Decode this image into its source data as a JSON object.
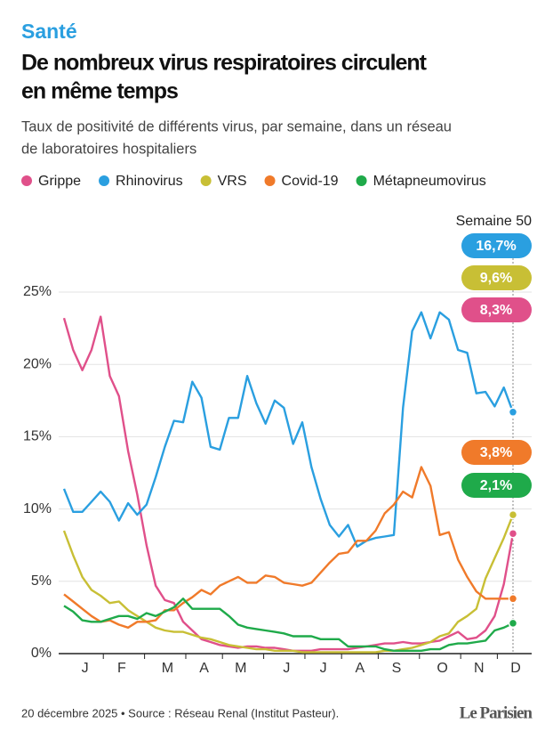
{
  "header": {
    "kicker": "Santé",
    "title_lines": [
      "De nombreux virus respiratoires circulent",
      "en même temps"
    ],
    "subtitle_lines": [
      "Taux de positivité de différents virus, par semaine, dans un réseau",
      "de laboratoires hospitaliers"
    ]
  },
  "chart_data": {
    "type": "line",
    "annotation": "Semaine 50",
    "categories": [
      null,
      null,
      "J",
      null,
      null,
      null,
      "F",
      null,
      null,
      null,
      null,
      "M",
      null,
      null,
      null,
      "A",
      null,
      null,
      null,
      "M",
      null,
      null,
      null,
      null,
      "J",
      null,
      null,
      null,
      "J",
      null,
      null,
      null,
      "A",
      null,
      null,
      null,
      "S",
      null,
      null,
      null,
      null,
      "O",
      null,
      null,
      null,
      "N",
      null,
      null,
      null,
      "D"
    ],
    "ylim": [
      0,
      27
    ],
    "yticks": [
      {
        "value": 0,
        "label": "0%"
      },
      {
        "value": 5,
        "label": "5%"
      },
      {
        "value": 10,
        "label": "10%"
      },
      {
        "value": 15,
        "label": "15%"
      },
      {
        "value": 20,
        "label": "20%"
      },
      {
        "value": 25,
        "label": "25%"
      }
    ],
    "grid": true,
    "series": [
      {
        "name": "Grippe",
        "color": "#e0508a",
        "values": [
          23.2,
          21,
          19.6,
          21,
          23.3,
          19.2,
          17.8,
          14,
          11,
          7.5,
          4.7,
          3.7,
          3.5,
          2.2,
          1.6,
          1.0,
          0.8,
          0.6,
          0.5,
          0.4,
          0.5,
          0.5,
          0.4,
          0.4,
          0.3,
          0.2,
          0.2,
          0.2,
          0.3,
          0.3,
          0.3,
          0.3,
          0.4,
          0.5,
          0.6,
          0.7,
          0.7,
          0.8,
          0.7,
          0.7,
          0.8,
          0.9,
          1.2,
          1.5,
          1.0,
          1.1,
          1.6,
          2.6,
          4.8,
          8.3
        ],
        "value_labels": [
          null,
          null,
          null,
          null,
          null,
          null,
          null,
          null,
          null,
          null,
          null,
          null,
          null,
          null,
          null,
          null,
          null,
          null,
          null,
          null,
          null,
          null,
          null,
          null,
          null,
          null,
          null,
          null,
          null,
          null,
          null,
          null,
          null,
          null,
          null,
          null,
          null,
          null,
          null,
          null,
          null,
          null,
          null,
          null,
          null,
          null,
          null,
          null,
          null,
          "8,3%"
        ]
      },
      {
        "name": "Rhinovirus",
        "color": "#2a9fe0",
        "values": [
          11.4,
          9.8,
          9.8,
          10.5,
          11.2,
          10.5,
          9.2,
          10.4,
          9.6,
          10.3,
          12.2,
          14.3,
          16.1,
          16.0,
          18.8,
          17.7,
          14.3,
          14.1,
          16.3,
          16.3,
          19.2,
          17.3,
          15.9,
          17.5,
          17.0,
          14.5,
          16.0,
          12.9,
          10.7,
          8.9,
          8.1,
          8.9,
          7.4,
          7.8,
          8.0,
          8.1,
          8.2,
          17.0,
          22.3,
          23.6,
          21.8,
          23.6,
          23.1,
          21.0,
          20.8,
          18.0,
          18.1,
          17.1,
          18.4,
          16.7
        ],
        "value_labels": [
          null,
          null,
          null,
          null,
          null,
          null,
          null,
          null,
          null,
          null,
          null,
          null,
          null,
          null,
          null,
          null,
          null,
          null,
          null,
          null,
          null,
          null,
          null,
          null,
          null,
          null,
          null,
          null,
          null,
          null,
          null,
          null,
          null,
          null,
          null,
          null,
          null,
          null,
          null,
          null,
          null,
          null,
          null,
          null,
          null,
          null,
          null,
          null,
          null,
          "16,7%"
        ]
      },
      {
        "name": "VRS",
        "color": "#c8bf35",
        "values": [
          8.5,
          6.8,
          5.3,
          4.4,
          4.0,
          3.5,
          3.6,
          3.0,
          2.6,
          2.2,
          1.8,
          1.6,
          1.5,
          1.5,
          1.3,
          1.1,
          1.0,
          0.8,
          0.6,
          0.5,
          0.4,
          0.3,
          0.3,
          0.2,
          0.2,
          0.2,
          0.1,
          0.1,
          0.1,
          0.1,
          0.1,
          0.1,
          0.1,
          0.1,
          0.1,
          0.2,
          0.2,
          0.3,
          0.4,
          0.6,
          0.8,
          1.2,
          1.4,
          2.2,
          2.6,
          3.1,
          5.2,
          6.6,
          8.0,
          9.6
        ],
        "value_labels": [
          null,
          null,
          null,
          null,
          null,
          null,
          null,
          null,
          null,
          null,
          null,
          null,
          null,
          null,
          null,
          null,
          null,
          null,
          null,
          null,
          null,
          null,
          null,
          null,
          null,
          null,
          null,
          null,
          null,
          null,
          null,
          null,
          null,
          null,
          null,
          null,
          null,
          null,
          null,
          null,
          null,
          null,
          null,
          null,
          null,
          null,
          null,
          null,
          null,
          "9,6%"
        ]
      },
      {
        "name": "Covid-19",
        "color": "#f07a2a",
        "values": [
          4.1,
          3.6,
          3.1,
          2.6,
          2.2,
          2.3,
          2.0,
          1.8,
          2.2,
          2.2,
          2.3,
          3.0,
          3.0,
          3.5,
          3.9,
          4.4,
          4.1,
          4.7,
          5.0,
          5.3,
          4.9,
          4.9,
          5.4,
          5.3,
          4.9,
          4.8,
          4.7,
          4.9,
          5.6,
          6.3,
          6.9,
          7.0,
          7.8,
          7.8,
          8.5,
          9.7,
          10.3,
          11.2,
          10.8,
          12.9,
          11.6,
          8.2,
          8.4,
          6.5,
          5.3,
          4.3,
          3.8,
          3.8,
          3.8,
          3.8
        ],
        "value_labels": [
          null,
          null,
          null,
          null,
          null,
          null,
          null,
          null,
          null,
          null,
          null,
          null,
          null,
          null,
          null,
          null,
          null,
          null,
          null,
          null,
          null,
          null,
          null,
          null,
          null,
          null,
          null,
          null,
          null,
          null,
          null,
          null,
          null,
          null,
          null,
          null,
          null,
          null,
          null,
          null,
          null,
          null,
          null,
          null,
          null,
          null,
          null,
          null,
          null,
          "3,8%"
        ]
      },
      {
        "name": "Métapneumovirus",
        "color": "#1faa4a",
        "values": [
          3.3,
          2.9,
          2.3,
          2.2,
          2.2,
          2.4,
          2.6,
          2.6,
          2.4,
          2.8,
          2.6,
          2.9,
          3.2,
          3.8,
          3.1,
          3.1,
          3.1,
          3.1,
          2.6,
          2.0,
          1.8,
          1.7,
          1.6,
          1.5,
          1.4,
          1.2,
          1.2,
          1.2,
          1.0,
          1.0,
          1.0,
          0.5,
          0.5,
          0.5,
          0.5,
          0.3,
          0.2,
          0.2,
          0.2,
          0.2,
          0.3,
          0.3,
          0.6,
          0.7,
          0.7,
          0.8,
          0.9,
          1.6,
          1.8,
          2.1
        ],
        "value_labels": [
          null,
          null,
          null,
          null,
          null,
          null,
          null,
          null,
          null,
          null,
          null,
          null,
          null,
          null,
          null,
          null,
          null,
          null,
          null,
          null,
          null,
          null,
          null,
          null,
          null,
          null,
          null,
          null,
          null,
          null,
          null,
          null,
          null,
          null,
          null,
          null,
          null,
          null,
          null,
          null,
          null,
          null,
          null,
          null,
          null,
          null,
          null,
          null,
          null,
          "2,1%"
        ]
      }
    ]
  },
  "footer": {
    "source": "20 décembre 2025 • Source : Réseau Renal (Institut Pasteur).",
    "logo": "Le Parisien"
  }
}
